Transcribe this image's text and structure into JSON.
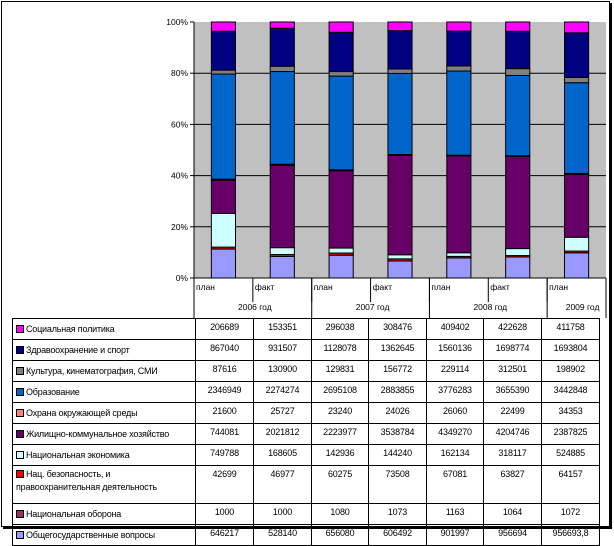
{
  "chart_data": {
    "type": "bar",
    "stacked": "percent",
    "title": "",
    "xlabel": "",
    "ylabel": "",
    "ylim": [
      0,
      100
    ],
    "y_ticks": [
      "0%",
      "20%",
      "40%",
      "60%",
      "80%",
      "100%"
    ],
    "grid": true,
    "legend": "table-bottom",
    "groups": [
      {
        "label": "2006 год",
        "span": 2
      },
      {
        "label": "2007 год",
        "span": 2
      },
      {
        "label": "2008 год",
        "span": 2
      },
      {
        "label": "2009 год",
        "span": 1
      }
    ],
    "categories": [
      "план",
      "факт",
      "план",
      "факт",
      "план",
      "факт",
      "план"
    ],
    "series": [
      {
        "name": "Социальная политика",
        "color": "#FF00FF",
        "values": [
          "206689",
          "153351",
          "296038",
          "308476",
          "409402",
          "422628",
          "411758"
        ]
      },
      {
        "name": "Здравоохранение и спорт",
        "color": "#000080",
        "values": [
          "867040",
          "931507",
          "1128078",
          "1362645",
          "1560136",
          "1698774",
          "1693804"
        ]
      },
      {
        "name": "Культура, кинематография, СМИ",
        "color": "#808080",
        "values": [
          "87616",
          "130900",
          "129831",
          "156772",
          "229114",
          "312501",
          "198902"
        ]
      },
      {
        "name": "Образование",
        "color": "#0066CC",
        "values": [
          "2346949",
          "2274274",
          "2695108",
          "2883855",
          "3776283",
          "3655390",
          "3442848"
        ]
      },
      {
        "name": "Охрана окружающей среды",
        "color": "#FF8080",
        "values": [
          "21600",
          "25727",
          "23240",
          "24026",
          "26060",
          "22499",
          "34353"
        ]
      },
      {
        "name": "Жилищно-коммунальное хозяйство",
        "color": "#660066",
        "values": [
          "744081",
          "2021812",
          "2223977",
          "3538784",
          "4349270",
          "4204746",
          "2387825"
        ]
      },
      {
        "name": "Национальная экономика",
        "color": "#CCFFFF",
        "values": [
          "749788",
          "168605",
          "142936",
          "144240",
          "162134",
          "318117",
          "524885"
        ]
      },
      {
        "name": "Нац. безопасность, и правоохранительная деятельность",
        "color": "#FF0000",
        "values": [
          "42699",
          "46977",
          "60275",
          "73508",
          "67081",
          "63827",
          "64157"
        ]
      },
      {
        "name": "Национальная оборона",
        "color": "#993366",
        "values": [
          "1000",
          "1000",
          "1080",
          "1073",
          "1163",
          "1064",
          "1072"
        ]
      },
      {
        "name": "Общегосударственные вопросы",
        "color": "#9999FF",
        "values": [
          "646217",
          "528140",
          "656080",
          "606492",
          "901997",
          "956694",
          "956693,8"
        ]
      }
    ]
  },
  "colors": {
    "plot_background": "#C0C0C0",
    "gridline": "#000000"
  }
}
